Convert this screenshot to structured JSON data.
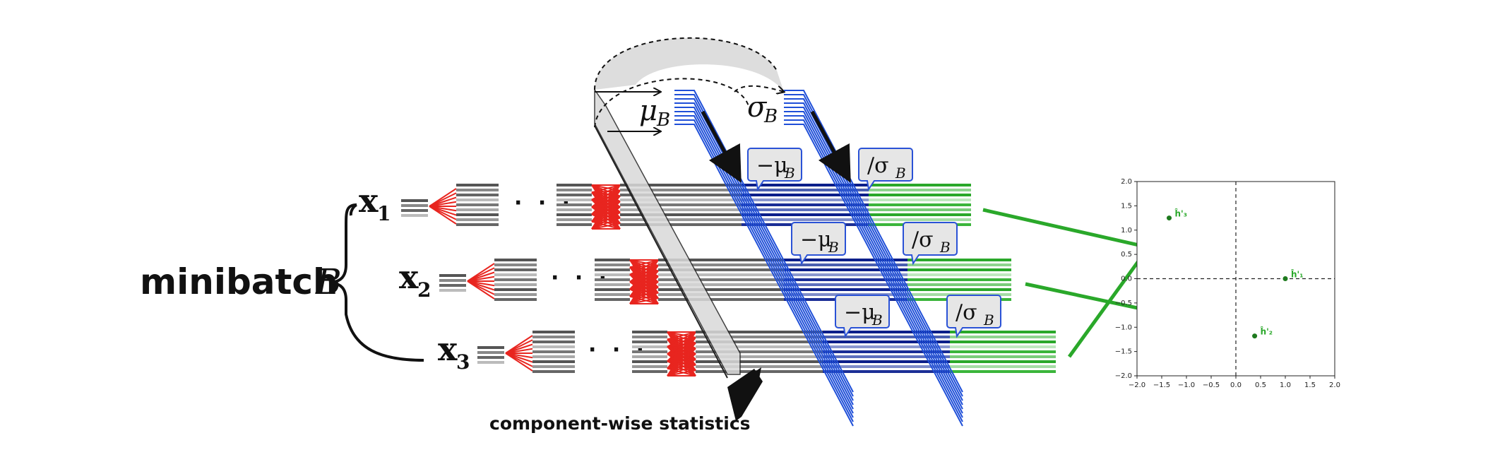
{
  "labels": {
    "minibatch": "minibatch",
    "minibatch_symbol": "B",
    "x_var": "x",
    "x1_sub": "1",
    "x2_sub": "2",
    "x3_sub": "3",
    "ellipsis": "· · ·",
    "mu_b": "μ",
    "sigma_b": "σ",
    "sub_b": "B",
    "minus_mu": "−μ",
    "div_sigma": "/σ",
    "caption": "component-wise statistics"
  },
  "colors": {
    "red_network": "#e8251f",
    "blue_bands": "#1f4fd8",
    "dark_blue": "#0c1f8a",
    "green": "#2aa82a",
    "gray_dark": "#5a5a5a",
    "gray_light": "#bdbdbd",
    "shade": "#d9d9d9"
  },
  "chart_data": {
    "type": "scatter",
    "xlim": [
      -2.0,
      2.0
    ],
    "ylim": [
      -2.0,
      2.0
    ],
    "xticks": [
      "−2.0",
      "−1.5",
      "−1.0",
      "−0.5",
      "0.0",
      "0.5",
      "1.0",
      "1.5",
      "2.0"
    ],
    "yticks": [
      "2.0",
      "1.5",
      "1.0",
      "0.5",
      "0.0",
      "−0.5",
      "−1.0",
      "−1.5",
      "−2.0"
    ],
    "zero_lines": "dashed",
    "points": [
      {
        "label": "ĥ'₁",
        "x": 1.0,
        "y": 0.0
      },
      {
        "label": "ĥ'₂",
        "x": 0.38,
        "y": -1.18
      },
      {
        "label": "ĥ'₃",
        "x": -1.35,
        "y": 1.25
      }
    ]
  }
}
